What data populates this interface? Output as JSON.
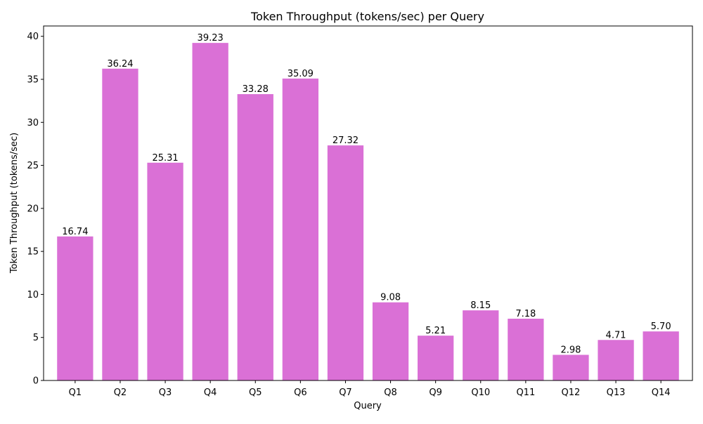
{
  "chart_data": {
    "type": "bar",
    "title": "Token Throughput (tokens/sec) per Query",
    "xlabel": "Query",
    "ylabel": "Token Throughput (tokens/sec)",
    "categories": [
      "Q1",
      "Q2",
      "Q3",
      "Q4",
      "Q5",
      "Q6",
      "Q7",
      "Q8",
      "Q9",
      "Q10",
      "Q11",
      "Q12",
      "Q13",
      "Q14"
    ],
    "values": [
      16.74,
      36.24,
      25.31,
      39.23,
      33.28,
      35.09,
      27.32,
      9.08,
      5.21,
      8.15,
      7.18,
      2.98,
      4.71,
      5.7
    ],
    "value_labels": [
      "16.74",
      "36.24",
      "25.31",
      "39.23",
      "33.28",
      "35.09",
      "27.32",
      "9.08",
      "5.21",
      "8.15",
      "7.18",
      "2.98",
      "4.71",
      "5.70"
    ],
    "ylim": [
      0,
      41.2
    ],
    "yticks": [
      0,
      5,
      10,
      15,
      20,
      25,
      30,
      35,
      40
    ],
    "grid": false,
    "legend": "none",
    "bar_color": "#da70d6"
  }
}
